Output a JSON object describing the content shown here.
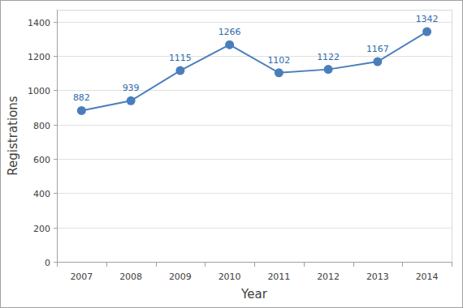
{
  "chart_data": {
    "type": "line",
    "x_label": "Year",
    "y_label": "Registrations",
    "categories": [
      "2007",
      "2008",
      "2009",
      "2010",
      "2011",
      "2012",
      "2013",
      "2014"
    ],
    "values": [
      882,
      939,
      1115,
      1266,
      1102,
      1122,
      1167,
      1342
    ],
    "color": "#4a7ebb",
    "marker": "circle",
    "data_labels": true,
    "grid": true,
    "ylim": [
      0,
      1470
    ],
    "yticks": [
      0,
      200,
      400,
      600,
      800,
      1000,
      1200,
      1400
    ]
  }
}
